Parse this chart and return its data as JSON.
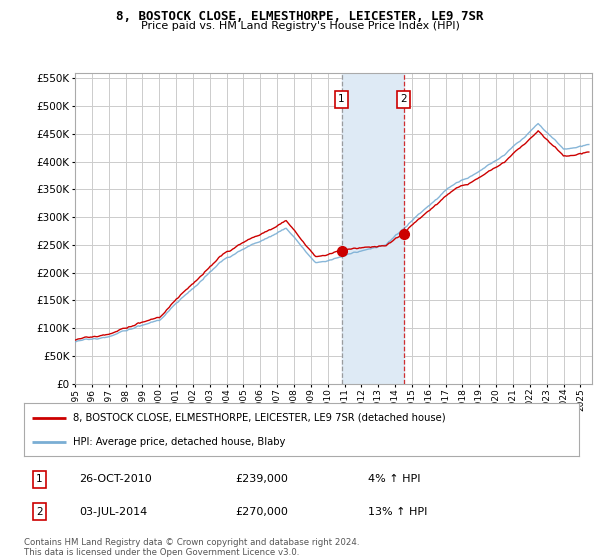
{
  "title": "8, BOSTOCK CLOSE, ELMESTHORPE, LEICESTER, LE9 7SR",
  "subtitle": "Price paid vs. HM Land Registry's House Price Index (HPI)",
  "ylim": [
    0,
    560000
  ],
  "yticks": [
    0,
    50000,
    100000,
    150000,
    200000,
    250000,
    300000,
    350000,
    400000,
    450000,
    500000,
    550000
  ],
  "xlim_start": 1995.3,
  "xlim_end": 2025.7,
  "transaction1_x": 2010.82,
  "transaction1_y": 239000,
  "transaction1_label": "1",
  "transaction1_date": "26-OCT-2010",
  "transaction1_price": "£239,000",
  "transaction1_hpi": "4% ↑ HPI",
  "transaction2_x": 2014.5,
  "transaction2_y": 270000,
  "transaction2_label": "2",
  "transaction2_date": "03-JUL-2014",
  "transaction2_price": "£270,000",
  "transaction2_hpi": "13% ↑ HPI",
  "legend_line1": "8, BOSTOCK CLOSE, ELMESTHORPE, LEICESTER, LE9 7SR (detached house)",
  "legend_line2": "HPI: Average price, detached house, Blaby",
  "footer": "Contains HM Land Registry data © Crown copyright and database right 2024.\nThis data is licensed under the Open Government Licence v3.0.",
  "line_color_red": "#cc0000",
  "line_color_blue": "#7aaed4",
  "shade_color": "#deeaf5",
  "background_color": "#ffffff",
  "grid_color": "#cccccc"
}
